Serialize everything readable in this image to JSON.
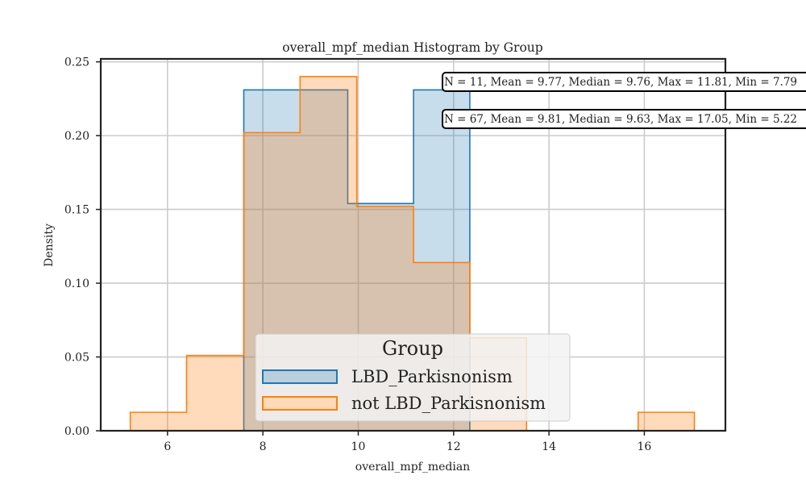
{
  "chart_data": {
    "type": "histogram",
    "title": "overall_mpf_median Histogram by Group",
    "xlabel": "overall_mpf_median",
    "ylabel": "Density",
    "xlim": [
      4.6,
      17.7
    ],
    "ylim": [
      0,
      0.252
    ],
    "xticks": [
      6,
      8,
      10,
      12,
      14,
      16
    ],
    "yticks": [
      0.0,
      0.05,
      0.1,
      0.15,
      0.2,
      0.25
    ],
    "ytick_labels": [
      "0.00",
      "0.05",
      "0.10",
      "0.15",
      "0.20",
      "0.25"
    ],
    "grid": true,
    "legend": {
      "title": "Group",
      "placement": "lower-center"
    },
    "series": [
      {
        "name": "LBD_Parkisnonism",
        "color": "#1f77b4",
        "bins": [
          {
            "x0": 7.6,
            "x1": 9.78,
            "y": 0.231
          },
          {
            "x0": 9.78,
            "x1": 11.16,
            "y": 0.154
          },
          {
            "x0": 11.16,
            "x1": 12.34,
            "y": 0.231
          }
        ],
        "annotation": "N = 11, Mean = 9.77, Median = 9.76, Max = 11.81, Min = 7.79"
      },
      {
        "name": "not LBD_Parkisnonism",
        "color": "#ff7f0e",
        "bins": [
          {
            "x0": 5.22,
            "x1": 6.4,
            "y": 0.0125
          },
          {
            "x0": 6.4,
            "x1": 7.6,
            "y": 0.051
          },
          {
            "x0": 7.6,
            "x1": 8.78,
            "y": 0.202
          },
          {
            "x0": 8.78,
            "x1": 9.97,
            "y": 0.24
          },
          {
            "x0": 9.97,
            "x1": 11.16,
            "y": 0.152
          },
          {
            "x0": 11.16,
            "x1": 12.34,
            "y": 0.114
          },
          {
            "x0": 12.34,
            "x1": 13.53,
            "y": 0.063
          },
          {
            "x0": 15.87,
            "x1": 17.05,
            "y": 0.0125
          }
        ],
        "annotation": "N = 67, Mean = 9.81, Median = 9.63, Max = 17.05, Min = 5.22"
      }
    ]
  }
}
